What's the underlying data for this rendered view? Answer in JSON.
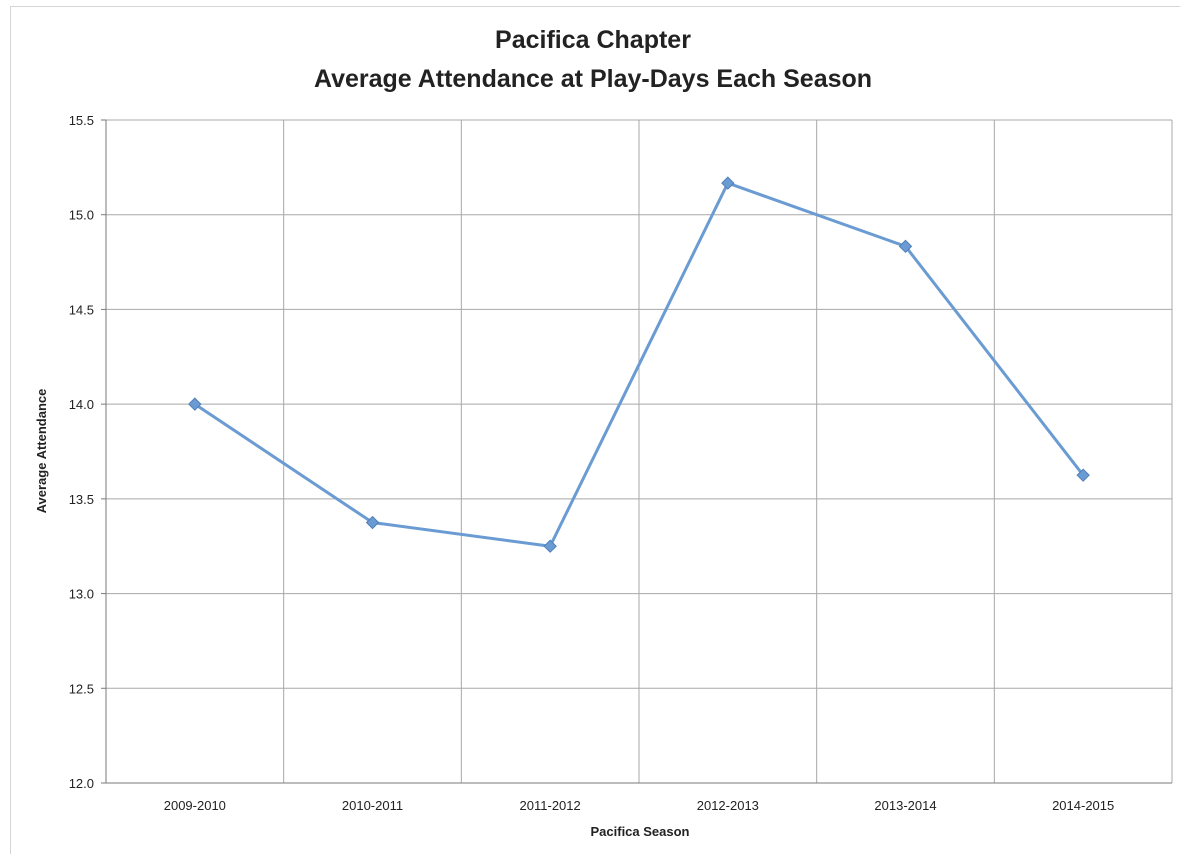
{
  "chart_data": {
    "type": "line",
    "title": "Pacifica Chapter",
    "subtitle": "Average Attendance at Play-Days Each Season",
    "xlabel": "Pacifica Season",
    "ylabel": "Average Attendance",
    "categories": [
      "2009-2010",
      "2010-2011",
      "2011-2012",
      "2012-2013",
      "2013-2014",
      "2014-2015"
    ],
    "series": [
      {
        "values": [
          14.0,
          13.375,
          13.25,
          15.167,
          14.833,
          13.625
        ]
      }
    ],
    "ylim": [
      12.0,
      15.5
    ],
    "yticks": [
      "12.0",
      "12.5",
      "13.0",
      "13.5",
      "14.0",
      "14.5",
      "15.0",
      "15.5"
    ],
    "ytick_values": [
      12.0,
      12.5,
      13.0,
      13.5,
      14.0,
      14.5,
      15.0,
      15.5
    ],
    "grid": true,
    "legend": "none",
    "line_color": "#6a9bd2"
  }
}
